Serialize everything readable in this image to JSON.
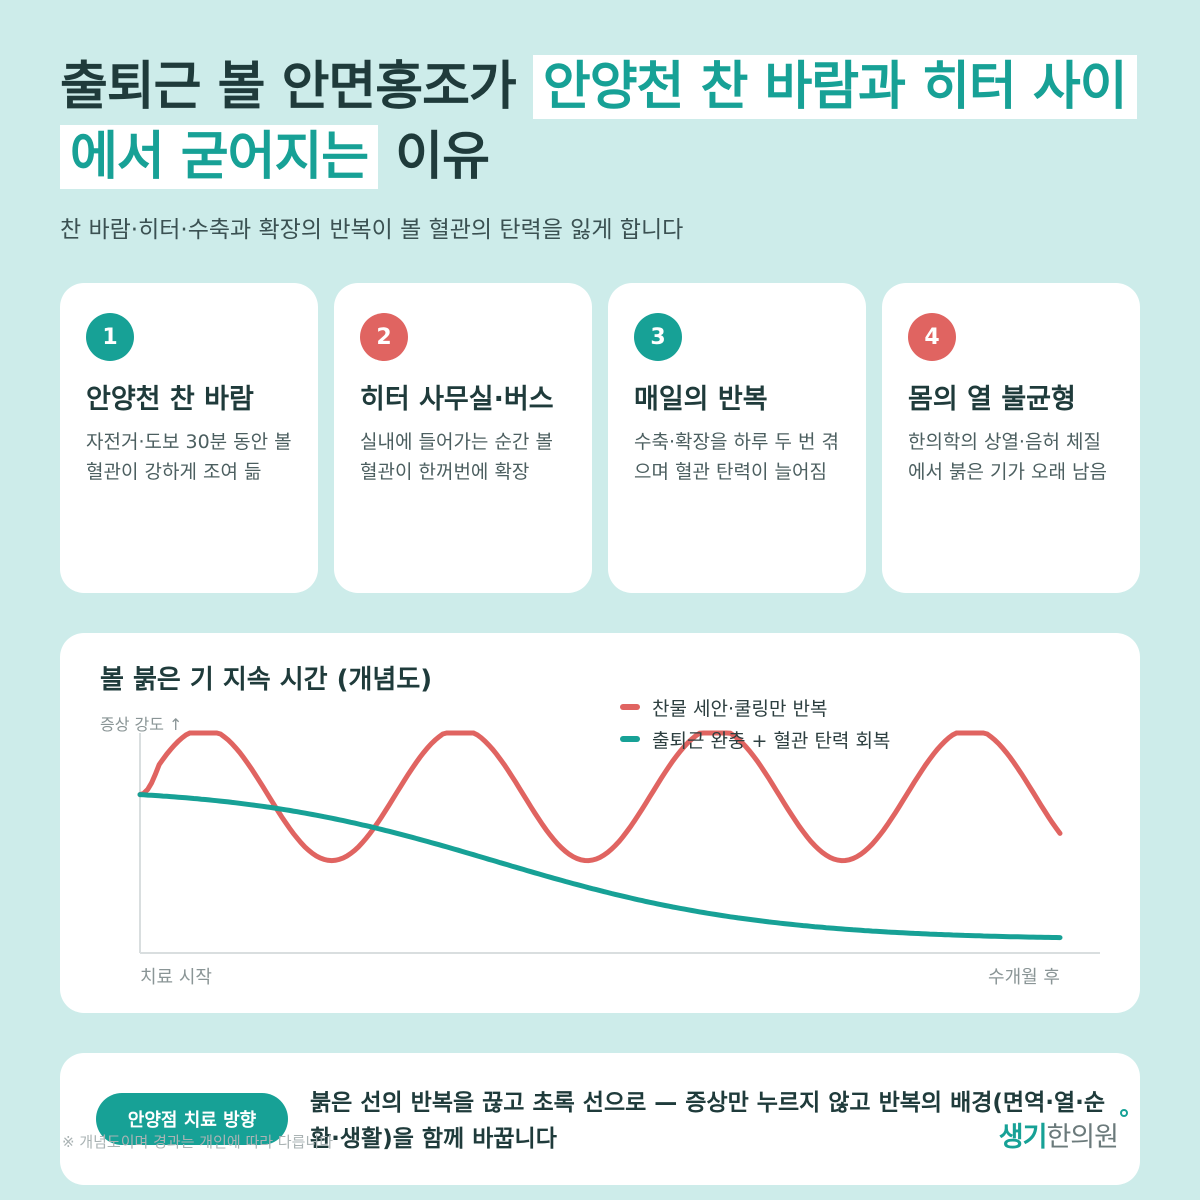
{
  "title": {
    "part1": "출퇴근 볼 안면홍조가 ",
    "highlight1": "안양천 찬 바람과 히터 사이에서 굳어지는",
    "part2": " 이유"
  },
  "subtitle": "찬 바람·히터·수축과 확장의 반복이 볼 혈관의 탄력을 잃게 합니다",
  "cards": [
    {
      "num": "1",
      "title": "안양천 찬 바람",
      "desc": "자전거·도보 30분 동안 볼 혈관이 강하게 조여 듦",
      "color": "#17a196"
    },
    {
      "num": "2",
      "title": "히터 사무실·버스",
      "desc": "실내에 들어가는 순간 볼 혈관이 한꺼번에 확장",
      "color": "#e06461"
    },
    {
      "num": "3",
      "title": "매일의 반복",
      "desc": "수축·확장을 하루 두 번 겪으며 혈관 탄력이 늘어짐",
      "color": "#17a196"
    },
    {
      "num": "4",
      "title": "몸의 열 불균형",
      "desc": "한의학의 상열·음허 체질에서 붉은 기가 오래 남음",
      "color": "#e06461"
    }
  ],
  "chart": {
    "title": "볼 붉은 기 지속 시간 (개념도)",
    "ylabel": "증상 강도 ↑",
    "xstart": "치료 시작",
    "xend": "수개월 후"
  },
  "chart_data": {
    "type": "line",
    "title": "볼 붉은 기 지속 시간 (개념도)",
    "ylabel": "증상 강도 ↑",
    "x_range": [
      "치료 시작",
      "수개월 후"
    ],
    "series": [
      {
        "name": "찬물 세안·쿨링만 반복",
        "color": "#e06461",
        "shape": "oscillating",
        "cycles": 3.6,
        "amplitude": 0.3,
        "baseline": 0.72
      },
      {
        "name": "출퇴근 완충 + 혈관 탄력 회복",
        "color": "#17a196",
        "shape": "declining",
        "start": 0.72,
        "end": 0.07
      }
    ]
  },
  "bottom": {
    "pill": "안양점 치료 방향",
    "text": "붉은 선의 반복을 끊고 초록 선으로 — 증상만 누르지 않고 반복의 배경(면역·열·순환·생활)을 함께 바꿉니다",
    "note": "※ 개념도이며 경과는 개인에 따라 다릅니다",
    "logo_main": "생기",
    "logo_sub": "한의원"
  }
}
